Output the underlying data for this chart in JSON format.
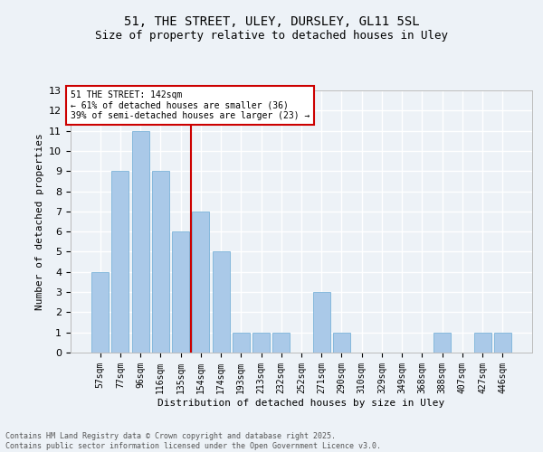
{
  "title1": "51, THE STREET, ULEY, DURSLEY, GL11 5SL",
  "title2": "Size of property relative to detached houses in Uley",
  "xlabel": "Distribution of detached houses by size in Uley",
  "ylabel": "Number of detached properties",
  "categories": [
    "57sqm",
    "77sqm",
    "96sqm",
    "116sqm",
    "135sqm",
    "154sqm",
    "174sqm",
    "193sqm",
    "213sqm",
    "232sqm",
    "252sqm",
    "271sqm",
    "290sqm",
    "310sqm",
    "329sqm",
    "349sqm",
    "368sqm",
    "388sqm",
    "407sqm",
    "427sqm",
    "446sqm"
  ],
  "values": [
    4,
    9,
    11,
    9,
    6,
    7,
    5,
    1,
    1,
    1,
    0,
    3,
    1,
    0,
    0,
    0,
    0,
    1,
    0,
    1,
    1
  ],
  "bar_color": "#aac9e8",
  "bar_edge_color": "#6aaad4",
  "vline_x": 4.5,
  "vline_color": "#cc0000",
  "annotation_text": "51 THE STREET: 142sqm\n← 61% of detached houses are smaller (36)\n39% of semi-detached houses are larger (23) →",
  "annotation_box_color": "#ffffff",
  "annotation_box_edge_color": "#cc0000",
  "ylim": [
    0,
    13
  ],
  "yticks": [
    0,
    1,
    2,
    3,
    4,
    5,
    6,
    7,
    8,
    9,
    10,
    11,
    12,
    13
  ],
  "footer_text": "Contains HM Land Registry data © Crown copyright and database right 2025.\nContains public sector information licensed under the Open Government Licence v3.0.",
  "background_color": "#edf2f7",
  "grid_color": "#ffffff",
  "title_fontsize": 10,
  "subtitle_fontsize": 9,
  "axis_label_fontsize": 8,
  "tick_fontsize": 7,
  "annotation_fontsize": 7,
  "footer_fontsize": 6
}
